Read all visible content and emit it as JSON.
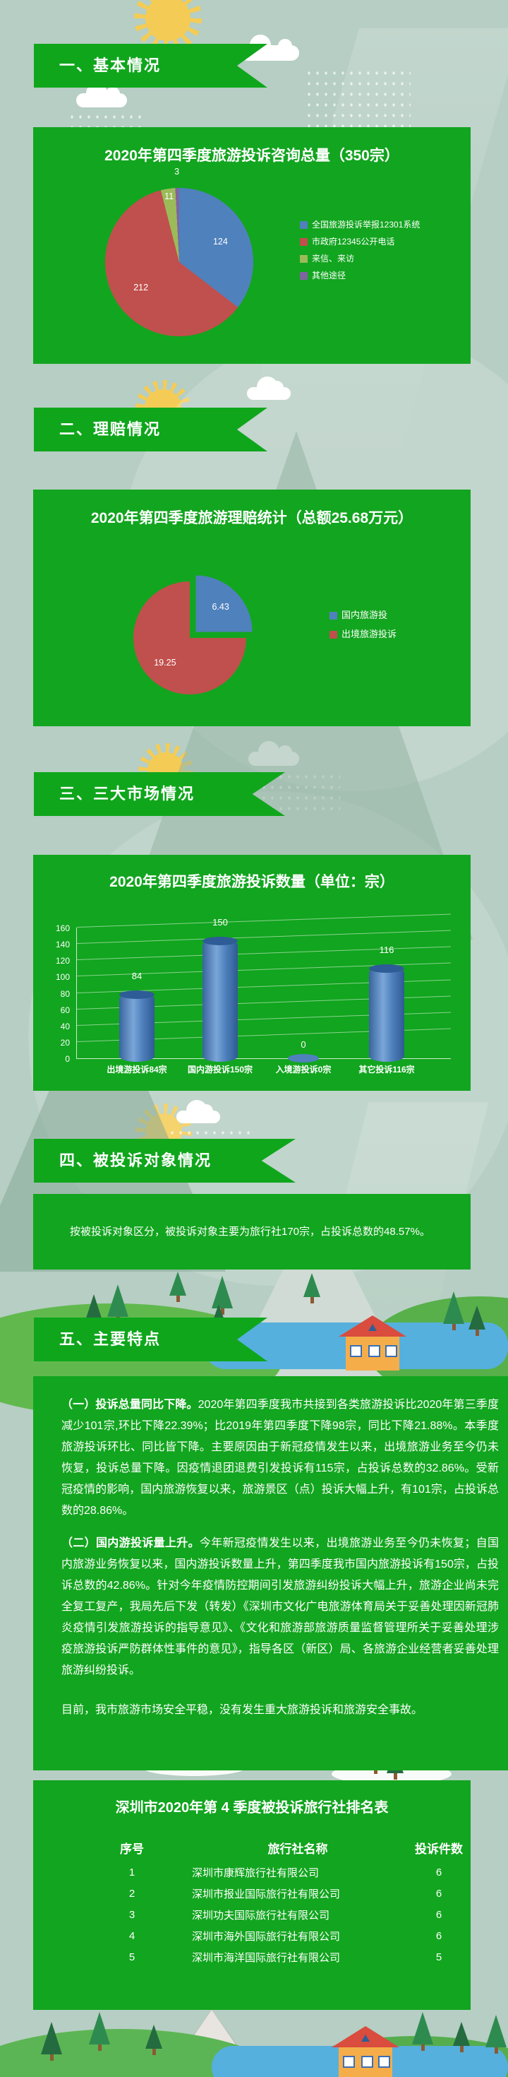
{
  "theme": {
    "background": "#b6cec3",
    "panel_green": "#12a51f",
    "banner_green": "#0fa61c",
    "text_color": "#ffffff",
    "pie_palette": [
      "#4f81bd",
      "#c0504d",
      "#9bbb59",
      "#8064a2"
    ],
    "bar_blue": "#4f81bd",
    "river_blue": "#55b0dd",
    "sun_yellow": "#f4cc55",
    "house_roof_red": "#d94c3e"
  },
  "decor_icons": [
    "sun-icon",
    "cloud-icon",
    "rain-icon",
    "mountain-icon",
    "tree-icon",
    "house-icon",
    "river-shape",
    "grass-hill",
    "snow-drift",
    "light-beam",
    "halo-circle"
  ],
  "banners": [
    {
      "label": "一、基本情况"
    },
    {
      "label": "二、理赔情况"
    },
    {
      "label": "三、三大市场情况"
    },
    {
      "label": "四、被投诉对象情况"
    },
    {
      "label": "五、主要特点"
    }
  ],
  "panels": {
    "consult": {
      "title": "2020年第四季度旅游投诉咨询总量（350宗）"
    },
    "claims": {
      "title": "2020年第四季度旅游理赔统计（总额25.68万元）"
    },
    "market": {
      "title": "2020年第四季度旅游投诉数量（单位：宗）"
    },
    "object": {
      "text": "按被投诉对象区分，被投诉对象主要为旅行社170宗，占投诉总数的48.57%。"
    }
  },
  "features": {
    "p1_lead": "（一）投诉总量同比下降。",
    "p1": "2020年第四季度我市共接到各类旅游投诉比2020年第三季度减少101宗,环比下降22.39%；比2019年第四季度下降98宗，同比下降21.88%。本季度旅游投诉环比、同比皆下降。主要原因由于新冠疫情发生以来，出境旅游业务至今仍未恢复，投诉总量下降。因疫情退团退费引发投诉有115宗，占投诉总数的32.86%。受新冠疫情的影响，国内旅游恢复以来，旅游景区（点）投诉大幅上升，有101宗，占投诉总数的28.86%。",
    "p2_lead": "（二）国内游投诉量上升。",
    "p2": "今年新冠疫情发生以来，出境旅游业务至今仍未恢复；自国内旅游业务恢复以来，国内游投诉数量上升，第四季度我市国内旅游投诉有150宗，占投诉总数的42.86%。针对今年疫情防控期间引发旅游纠纷投诉大幅上升，旅游企业尚未完全复工复产，我局先后下发（转发）《深圳市文化广电旅游体育局关于妥善处理因新冠肺炎疫情引发旅游投诉的指导意见》、《文化和旅游部旅游质量监督管理所关于妥善处理涉疫旅游投诉严防群体性事件的意见》，指导各区（新区）局、各旅游企业经营者妥善处理旅游纠纷投诉。",
    "p3": "目前，我市旅游市场安全平稳，没有发生重大旅游投诉和旅游安全事故。"
  },
  "ranking_table": {
    "title": "深圳市2020年第 4 季度被投诉旅行社排名表",
    "columns": [
      "序号",
      "旅行社名称",
      "投诉件数"
    ],
    "rows": [
      [
        "1",
        "深圳市康辉旅行社有限公司",
        "6"
      ],
      [
        "2",
        "深圳市报业国际旅行社有限公司",
        "6"
      ],
      [
        "3",
        "深圳功夫国际旅行社有限公司",
        "6"
      ],
      [
        "4",
        "深圳市海外国际旅行社有限公司",
        "6"
      ],
      [
        "5",
        "深圳市海洋国际旅行社有限公司",
        "5"
      ]
    ]
  },
  "chart_data": [
    {
      "type": "pie",
      "title": "2020年第四季度旅游投诉咨询总量（350宗）",
      "total": 350,
      "legend_position": "right",
      "slices": [
        {
          "label": "全国旅游投诉举报12301系统",
          "value": 124,
          "color": "#4f81bd"
        },
        {
          "label": "市政府12345公开电话",
          "value": 212,
          "color": "#c0504d"
        },
        {
          "label": "来信、来访",
          "value": 11,
          "color": "#9bbb59"
        },
        {
          "label": "其他途径",
          "value": 3,
          "color": "#8064a2"
        }
      ]
    },
    {
      "type": "pie",
      "title": "2020年第四季度旅游理赔统计（总额25.68万元）",
      "total": 25.68,
      "legend_position": "right",
      "slices": [
        {
          "label": "国内旅游投",
          "value": 6.43,
          "color": "#4f81bd",
          "exploded": true
        },
        {
          "label": "出境旅游投诉",
          "value": 19.25,
          "color": "#c0504d"
        }
      ]
    },
    {
      "type": "bar",
      "title": "2020年第四季度旅游投诉数量（单位：宗）",
      "categories": [
        "出境游投诉84宗",
        "国内游投诉150宗",
        "入境游投诉0宗",
        "其它投诉116宗"
      ],
      "values": [
        84,
        150,
        0,
        116
      ],
      "xlabel": "",
      "ylabel": "",
      "ylim": [
        0,
        160
      ],
      "yticks": [
        0,
        20,
        40,
        60,
        80,
        100,
        120,
        140,
        160
      ],
      "grid": true,
      "bar_color": "#4f81bd"
    }
  ]
}
